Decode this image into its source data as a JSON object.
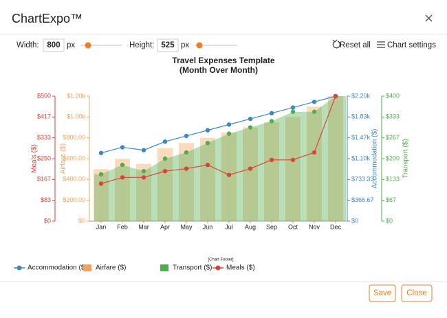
{
  "header": {
    "title": "ChartExpo™"
  },
  "toolbar": {
    "width_label": "Width:",
    "width_value": "800",
    "width_unit": "px",
    "height_label": "Height:",
    "height_value": "525",
    "height_unit": "px",
    "reset": "Reset all",
    "settings": "Chart settings"
  },
  "chart_data": {
    "type": "combo",
    "title": "Travel Expenses Template",
    "subtitle": "(Month Over Month)",
    "footer": "[Chart Footer]",
    "categories": [
      "Jan",
      "Feb",
      "Mar",
      "Apr",
      "May",
      "Jun",
      "Jul",
      "Aug",
      "Sep",
      "Oct",
      "Nov",
      "Dec"
    ],
    "series": [
      {
        "name": "Accommodation ($)",
        "type": "line",
        "color": "#3d87c4",
        "values": [
          1200,
          1300,
          1250,
          1400,
          1500,
          1600,
          1700,
          1800,
          1900,
          2000,
          2100,
          2200
        ],
        "ylim": [
          0,
          2200
        ],
        "yticks": [
          {
            "value": 0,
            "label": "$0"
          },
          {
            "value": 366.67,
            "label": "$366.67"
          },
          {
            "value": 733.33,
            "label": "$733.33"
          },
          {
            "value": 1100,
            "label": "$1.10k"
          },
          {
            "value": 1466.67,
            "label": "$1.47k"
          },
          {
            "value": 1833.33,
            "label": "$1.83k"
          },
          {
            "value": 2200,
            "label": "$2.20k"
          }
        ]
      },
      {
        "name": "Airfare ($)",
        "type": "bar",
        "color": "#f7a25c",
        "values": [
          500,
          600,
          550,
          700,
          750,
          800,
          850,
          900,
          950,
          1000,
          1100,
          1200
        ],
        "ylim": [
          0,
          1200
        ],
        "yticks": [
          {
            "value": 0,
            "label": "$0"
          },
          {
            "value": 200,
            "label": "$200.00"
          },
          {
            "value": 400,
            "label": "$400.00"
          },
          {
            "value": 600,
            "label": "$600.00"
          },
          {
            "value": 800,
            "label": "$800.00"
          },
          {
            "value": 1000,
            "label": "$1.00k"
          },
          {
            "value": 1200,
            "label": "$1.20k"
          }
        ]
      },
      {
        "name": "Transport ($)",
        "type": "area",
        "color": "#4fae4f",
        "values": [
          150,
          180,
          160,
          200,
          220,
          250,
          280,
          300,
          320,
          350,
          350,
          400
        ],
        "ylim": [
          0,
          400
        ],
        "yticks": [
          {
            "value": 0,
            "label": "$0"
          },
          {
            "value": 66.67,
            "label": "$67"
          },
          {
            "value": 133.33,
            "label": "$133"
          },
          {
            "value": 200,
            "label": "$200"
          },
          {
            "value": 266.67,
            "label": "$267"
          },
          {
            "value": 333.33,
            "label": "$333"
          },
          {
            "value": 400,
            "label": "$400"
          }
        ]
      },
      {
        "name": "Meals ($)",
        "type": "line",
        "color": "#d8433a",
        "values": [
          150,
          175,
          175,
          200,
          210,
          225,
          185,
          210,
          245,
          245,
          275,
          500
        ],
        "ylim": [
          0,
          500
        ],
        "yticks": [
          {
            "value": 0,
            "label": "$0"
          },
          {
            "value": 83.33,
            "label": "$83"
          },
          {
            "value": 166.67,
            "label": "$167"
          },
          {
            "value": 250,
            "label": "$250"
          },
          {
            "value": 333.33,
            "label": "$333"
          },
          {
            "value": 416.67,
            "label": "$417"
          },
          {
            "value": 500,
            "label": "$500"
          }
        ]
      }
    ]
  },
  "buttons": {
    "save": "Save",
    "close": "Close"
  }
}
